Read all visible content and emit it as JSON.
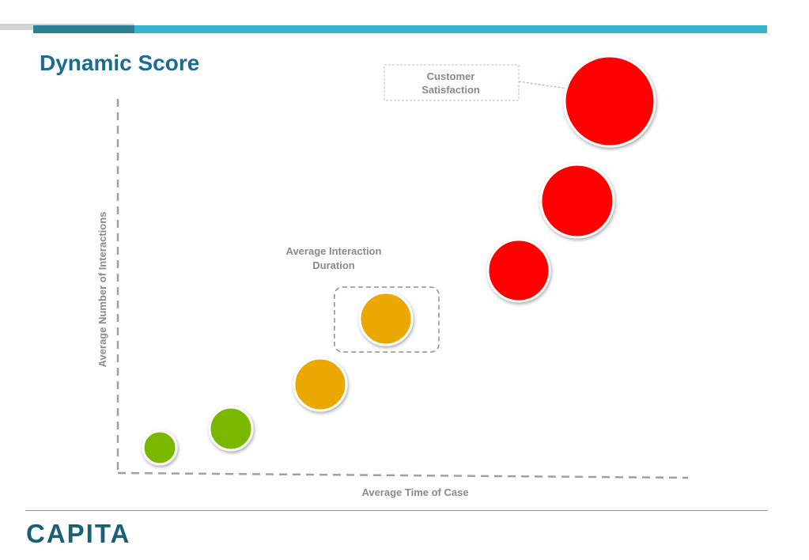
{
  "slide": {
    "title": "Dynamic Score",
    "logo_text": "CAPITA"
  },
  "diagram": {
    "x_axis_label": "Average Time of Case",
    "y_axis_label": "Average Number of Interactions",
    "callouts": {
      "highlighted_bubble": {
        "lines": [
          "Average Interaction",
          "Duration"
        ]
      },
      "top_bubble": {
        "lines": [
          "Customer",
          "Satisfaction"
        ]
      }
    },
    "bubbles": [
      {
        "id": "bubble-1",
        "color": "#7ab800",
        "status": "green"
      },
      {
        "id": "bubble-2",
        "color": "#7ab800",
        "status": "green"
      },
      {
        "id": "bubble-3",
        "color": "#eaa800",
        "status": "amber"
      },
      {
        "id": "bubble-4",
        "color": "#eaa800",
        "status": "amber",
        "highlighted": true
      },
      {
        "id": "bubble-5",
        "color": "#ff0000",
        "status": "red"
      },
      {
        "id": "bubble-6",
        "color": "#ff0000",
        "status": "red"
      },
      {
        "id": "bubble-7",
        "color": "#ff0000",
        "status": "red"
      }
    ]
  },
  "colors": {
    "brand_teal": "#35b5cb",
    "brand_dark": "#1a6d8f",
    "axis_grey": "#a0a0a0",
    "label_grey": "#8a8a8a"
  }
}
